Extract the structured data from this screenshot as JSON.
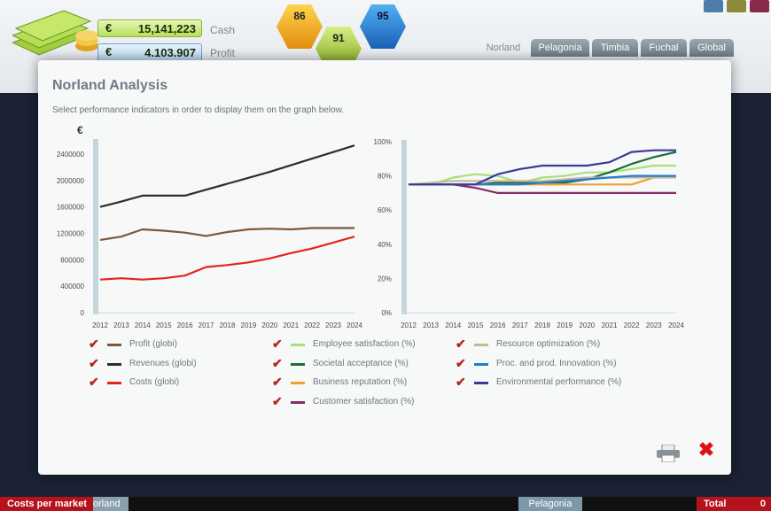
{
  "header": {
    "cash": {
      "currency": "€",
      "value": "15,141,223",
      "label": "Cash"
    },
    "profit": {
      "currency": "€",
      "value": "4.103.907",
      "label": "Profit"
    },
    "badges": [
      "86",
      "91",
      "95"
    ],
    "region_tabs": [
      {
        "label": "Norland",
        "active": true
      },
      {
        "label": "Pelagonia",
        "active": false
      },
      {
        "label": "Timbia",
        "active": false
      },
      {
        "label": "Fuchal",
        "active": false
      },
      {
        "label": "Global",
        "active": false
      }
    ]
  },
  "modal": {
    "title": "Norland Analysis",
    "subtitle": "Select performance indicators in order to display them on the graph below.",
    "currency_symbol": "€"
  },
  "legend": {
    "finance": [
      {
        "label": "Profit (globi)",
        "color": "#7a5a3c",
        "checked": true
      },
      {
        "label": "Revenues (globi)",
        "color": "#2c2f2c",
        "checked": true
      },
      {
        "label": "Costs (globi)",
        "color": "#e8221c",
        "checked": true
      }
    ],
    "performance_a": [
      {
        "label": "Employee satisfaction (%)",
        "color": "#a6e07a",
        "checked": true
      },
      {
        "label": "Societal acceptance (%)",
        "color": "#1f6b3a",
        "checked": true
      },
      {
        "label": "Business reputation (%)",
        "color": "#f0a030",
        "checked": true
      },
      {
        "label": "Customer satisfaction (%)",
        "color": "#8b2a6a",
        "checked": true
      }
    ],
    "performance_b": [
      {
        "label": "Resource optimization (%)",
        "color": "#c8b89a",
        "checked": true
      },
      {
        "label": "Proc. and prod. Innovation (%)",
        "color": "#1e7ed0",
        "checked": true
      },
      {
        "label": "Environmental performance (%)",
        "color": "#3a3a9a",
        "checked": true
      }
    ]
  },
  "chart_data": [
    {
      "type": "line",
      "x": [
        "2012",
        "2013",
        "2014",
        "2015",
        "2016",
        "2017",
        "2018",
        "2019",
        "2020",
        "2021",
        "2022",
        "2023",
        "2024"
      ],
      "ylim": [
        0,
        2600000
      ],
      "yticks": [
        "0",
        "400000",
        "800000",
        "1200000",
        "1600000",
        "2000000",
        "2400000"
      ],
      "series": [
        {
          "name": "Profit (globi)",
          "color": "#7a5a3c",
          "values": [
            1100000,
            1150000,
            1260000,
            1240000,
            1210000,
            1160000,
            1220000,
            1260000,
            1270000,
            1260000,
            1280000,
            1280000,
            1280000
          ]
        },
        {
          "name": "Revenues (globi)",
          "color": "#2c2f2c",
          "values": [
            1600000,
            1680000,
            1770000,
            1770000,
            1770000,
            1860000,
            1950000,
            2040000,
            2130000,
            2230000,
            2330000,
            2430000,
            2530000
          ]
        },
        {
          "name": "Costs (globi)",
          "color": "#e8221c",
          "values": [
            500000,
            520000,
            500000,
            520000,
            560000,
            690000,
            720000,
            760000,
            820000,
            900000,
            970000,
            1060000,
            1150000
          ]
        }
      ]
    },
    {
      "type": "line",
      "x": [
        "2012",
        "2013",
        "2014",
        "2015",
        "2016",
        "2017",
        "2018",
        "2019",
        "2020",
        "2021",
        "2022",
        "2023",
        "2024"
      ],
      "ylim": [
        0,
        100
      ],
      "yticks": [
        "0%",
        "20%",
        "40%",
        "60%",
        "80%",
        "100%"
      ],
      "series": [
        {
          "name": "Employee satisfaction (%)",
          "color": "#a6e07a",
          "values": [
            75,
            75,
            79,
            81,
            80,
            76,
            79,
            80,
            82,
            82,
            84,
            86,
            86
          ]
        },
        {
          "name": "Societal acceptance (%)",
          "color": "#1f6b3a",
          "values": [
            75,
            75,
            75,
            75,
            76,
            76,
            76,
            76,
            78,
            82,
            87,
            91,
            94
          ]
        },
        {
          "name": "Business reputation (%)",
          "color": "#f0a030",
          "values": [
            75,
            75,
            75,
            75,
            75,
            75,
            75,
            75,
            75,
            75,
            75,
            79,
            80
          ]
        },
        {
          "name": "Customer satisfaction (%)",
          "color": "#8b2a6a",
          "values": [
            75,
            75,
            75,
            73,
            70,
            70,
            70,
            70,
            70,
            70,
            70,
            70,
            70
          ]
        },
        {
          "name": "Resource optimization (%)",
          "color": "#c8b89a",
          "values": [
            75,
            76,
            77,
            77,
            77,
            77,
            77,
            78,
            79,
            79,
            79,
            79,
            79
          ]
        },
        {
          "name": "Proc. and prod. Innovation (%)",
          "color": "#1e7ed0",
          "values": [
            75,
            75,
            75,
            75,
            75,
            75,
            76,
            77,
            78,
            79,
            80,
            80,
            80
          ]
        },
        {
          "name": "Environmental performance (%)",
          "color": "#3a3a9a",
          "values": [
            75,
            75,
            75,
            75,
            81,
            84,
            86,
            86,
            86,
            88,
            94,
            95,
            95
          ]
        }
      ]
    }
  ],
  "bottom_bar": {
    "costs_label": "Costs per market",
    "norland_label": "orland",
    "pelagonia_label": "Pelagonia",
    "total_label": "Total",
    "total_value": "0"
  }
}
